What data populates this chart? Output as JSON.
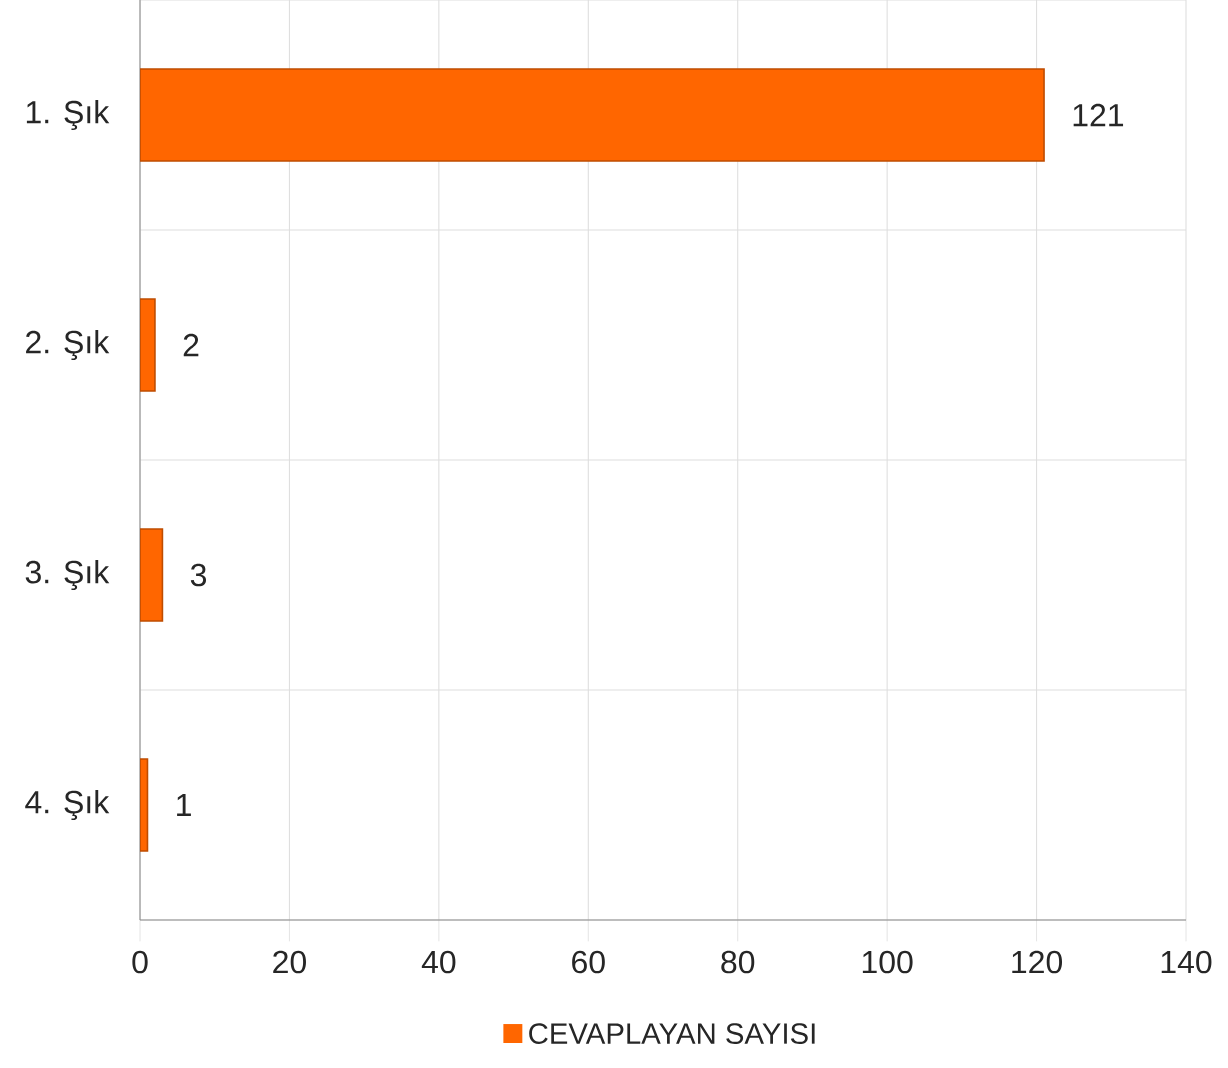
{
  "chart_data": {
    "type": "bar",
    "orientation": "horizontal",
    "categories": [
      "1. Şık",
      "2. Şık",
      "3. Şık",
      "4. Şık"
    ],
    "series": [
      {
        "name": "CEVAPLAYAN SAYISI",
        "color": "#ff6600",
        "values": [
          121,
          2,
          3,
          1
        ]
      }
    ],
    "xlim": [
      0,
      140
    ],
    "xticks": [
      0,
      20,
      40,
      60,
      80,
      100,
      120,
      140
    ],
    "grid": true,
    "legend": "bottom",
    "data_labels": true
  }
}
